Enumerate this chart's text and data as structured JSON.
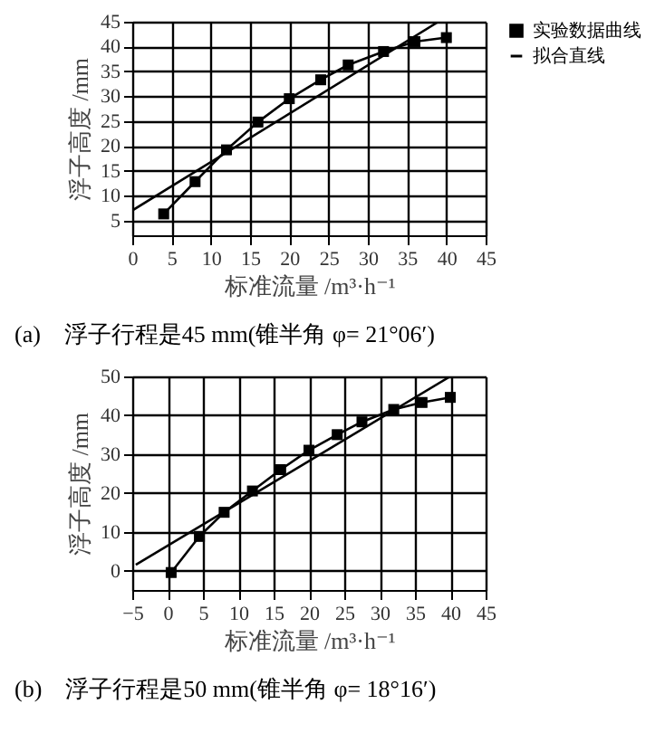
{
  "chart_data": [
    {
      "type": "line",
      "xlabel": "标准流量 /m³·h⁻¹",
      "ylabel": "浮子高度 /mm",
      "xlim": [
        0,
        45
      ],
      "ylim": [
        2,
        45
      ],
      "xticks": [
        0,
        5,
        10,
        15,
        20,
        25,
        30,
        35,
        40,
        45
      ],
      "yticks": [
        5,
        10,
        15,
        20,
        25,
        30,
        35,
        40,
        45
      ],
      "grid": true,
      "legend": "right",
      "annotations": [
        "(a)　浮子行程是45 mm(锥半角 φ= 21°06′)"
      ],
      "series": [
        {
          "name": "实验数据曲线",
          "color": "#000000",
          "marker": "square",
          "x": [
            4,
            8,
            12,
            16,
            20,
            24,
            27.5,
            32,
            36,
            40
          ],
          "values": [
            6.3,
            12.8,
            19.2,
            24.8,
            29.5,
            33.3,
            36.3,
            39,
            41,
            41.8
          ]
        },
        {
          "name": "拟合直线",
          "color": "#000000",
          "marker": "none",
          "x": [
            0,
            39
          ],
          "values": [
            7,
            45
          ]
        }
      ]
    },
    {
      "type": "line",
      "xlabel": "标准流量 /m³·h⁻¹",
      "ylabel": "浮子高度 /mm",
      "xlim": [
        -5,
        45
      ],
      "ylim": [
        -5,
        50
      ],
      "xticks": [
        -5,
        0,
        5,
        10,
        15,
        20,
        25,
        30,
        35,
        40,
        45
      ],
      "yticks": [
        0,
        10,
        20,
        30,
        40,
        50
      ],
      "grid": true,
      "legend": "right",
      "annotations": [
        "(b)　浮子行程是50 mm(锥半角 φ= 18°16′)"
      ],
      "series": [
        {
          "name": "实验数据曲线",
          "color": "#000000",
          "marker": "square",
          "x": [
            0.5,
            4.5,
            8,
            12,
            16,
            20,
            24,
            27.5,
            32,
            36,
            40
          ],
          "values": [
            -0.5,
            8.8,
            15,
            20.5,
            26,
            31,
            35,
            38.3,
            41.5,
            43.3,
            44.6
          ]
        },
        {
          "name": "拟合直线",
          "color": "#000000",
          "marker": "none",
          "x": [
            -4.5,
            40
          ],
          "values": [
            1.5,
            50
          ]
        }
      ]
    }
  ]
}
